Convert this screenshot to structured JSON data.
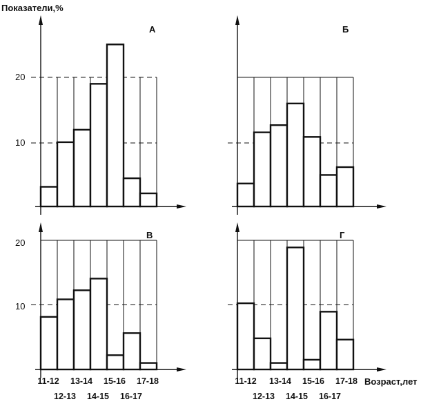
{
  "figure": {
    "ylabel": "Показатели,%",
    "xlabel": "Возраст,лет",
    "y_ticks": [
      "10",
      "20"
    ]
  },
  "chart_data": [
    {
      "type": "bar",
      "panel": "А",
      "categories": [
        "11-12",
        "12-13",
        "13-14",
        "14-15",
        "15-16",
        "16-17",
        "17-18"
      ],
      "values": [
        3,
        9.8,
        11.7,
        18.7,
        24.7,
        4.3,
        2
      ],
      "ylim": [
        0,
        25
      ],
      "ylabel": "Показатели,%",
      "xlabel": "",
      "grid": true
    },
    {
      "type": "bar",
      "panel": "Б",
      "categories": [
        "11-12",
        "12-13",
        "13-14",
        "14-15",
        "15-16",
        "16-17",
        "17-18"
      ],
      "values": [
        3.5,
        11.3,
        12.4,
        15.7,
        10.6,
        4.8,
        6
      ],
      "ylim": [
        0,
        25
      ],
      "xlabel": "",
      "grid": true
    },
    {
      "type": "bar",
      "panel": "В",
      "categories": [
        "11-12",
        "12-13",
        "13-14",
        "14-15",
        "15-16",
        "16-17",
        "17-18"
      ],
      "values": [
        8.1,
        10.8,
        12.2,
        14,
        2.2,
        5.6,
        1
      ],
      "ylim": [
        0,
        20
      ],
      "xlabel": "",
      "grid": true
    },
    {
      "type": "bar",
      "panel": "Г",
      "categories": [
        "11-12",
        "12-13",
        "13-14",
        "14-15",
        "15-16",
        "16-17",
        "17-18"
      ],
      "values": [
        10.2,
        4.8,
        1,
        18.8,
        1.5,
        8.9,
        4.6
      ],
      "ylim": [
        0,
        20
      ],
      "xlabel": "Возраст,лет",
      "grid": true
    }
  ],
  "left_labels": {
    "row1": [
      "11-12",
      "13-14",
      "15-16",
      "17-18"
    ],
    "row2": [
      "12-13",
      "14-15",
      "16-17"
    ]
  },
  "right_labels": {
    "row1": [
      "11-12",
      "13-14",
      "15-16",
      "17-18"
    ],
    "row2": [
      "12-13",
      "14-15",
      "16-17"
    ]
  }
}
